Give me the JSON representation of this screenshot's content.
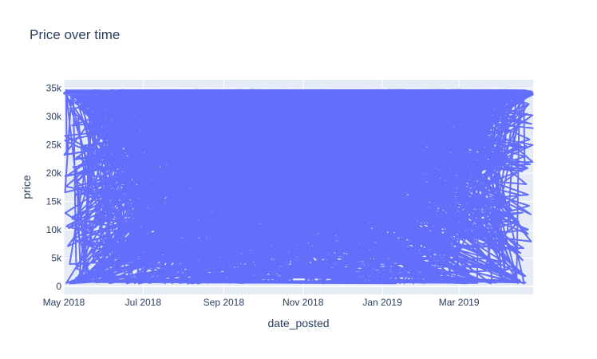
{
  "chart_data": {
    "type": "line",
    "title": "Price over time",
    "xlabel": "date_posted",
    "ylabel": "price",
    "x_tick_labels": [
      "May 2018",
      "Jul 2018",
      "Sep 2018",
      "Nov 2018",
      "Jan 2019",
      "Mar 2019"
    ],
    "x_ticks": [
      "2018-05-01",
      "2018-07-01",
      "2018-09-01",
      "2018-11-01",
      "2019-01-01",
      "2019-03-01"
    ],
    "xlim": [
      "2018-05-01",
      "2019-04-27"
    ],
    "y_tick_labels": [
      "0",
      "5k",
      "10k",
      "15k",
      "20k",
      "25k",
      "30k",
      "35k"
    ],
    "y_ticks": [
      0,
      5000,
      10000,
      15000,
      20000,
      25000,
      30000,
      35000
    ],
    "ylim": [
      -1400,
      36500
    ],
    "grid": true,
    "legend": "none",
    "series": [
      {
        "color": "#636efa",
        "value_range": [
          500,
          34700
        ],
        "x_range": [
          "2018-05-01",
          "2019-04-27"
        ],
        "pattern": "dense overlapping line spanning the full price range across the whole date range"
      }
    ],
    "colors": {
      "plot_bg": "#e5ecf6",
      "grid": "#ffffff",
      "line": "#636efa",
      "text": "#2a3f5f"
    }
  }
}
